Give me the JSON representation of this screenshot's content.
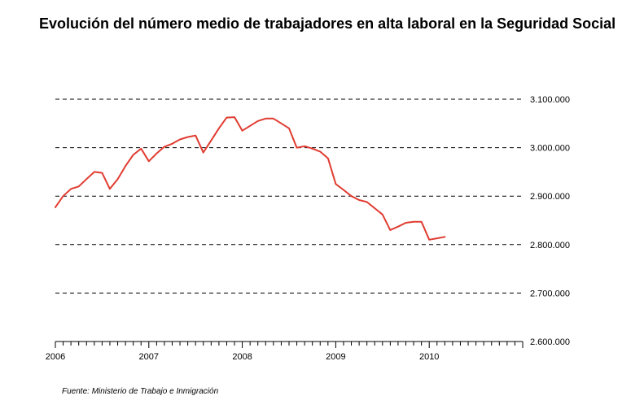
{
  "title": "Evolución del número medio de trabajadores en alta laboral en la Seguridad Social",
  "source": "Fuente: Ministerio de Trabajo e Inmigración",
  "chart_data": {
    "type": "line",
    "title": "Evolución del número medio de trabajadores en alta laboral en la Seguridad Social",
    "xlabel": "",
    "ylabel": "",
    "x_ticks": [
      "2006",
      "2007",
      "2008",
      "2009",
      "2010"
    ],
    "y_ticks": [
      "2.600.000",
      "2.700.000",
      "2.800.000",
      "2.900.000",
      "3.000.000",
      "3.100.000"
    ],
    "ylim": [
      2600000,
      3100000
    ],
    "xlim": [
      2006.0,
      2011.0
    ],
    "grid": "horizontal dashed",
    "line_color": "#e03c31",
    "series": [
      {
        "x": [
          2006.0,
          2006.083,
          2006.167,
          2006.25,
          2006.333,
          2006.417,
          2006.5,
          2006.583,
          2006.667,
          2006.75,
          2006.833,
          2006.917,
          2007.0,
          2007.083,
          2007.167,
          2007.25,
          2007.333,
          2007.417,
          2007.5,
          2007.583,
          2007.667,
          2007.75,
          2007.833,
          2007.917,
          2008.0,
          2008.083,
          2008.167,
          2008.25,
          2008.333,
          2008.417,
          2008.5,
          2008.583,
          2008.667,
          2008.75,
          2008.833,
          2008.917,
          2009.0,
          2009.083,
          2009.167,
          2009.25,
          2009.333,
          2009.417,
          2009.5,
          2009.583,
          2009.667,
          2009.75,
          2009.833,
          2009.917,
          2010.0,
          2010.083,
          2010.167
        ],
        "values": [
          2877000,
          2900000,
          2915000,
          2920000,
          2935000,
          2950000,
          2948000,
          2915000,
          2935000,
          2962000,
          2985000,
          2998000,
          2972000,
          2988000,
          3002000,
          3008000,
          3017000,
          3022000,
          3025000,
          2990000,
          3015000,
          3040000,
          3062000,
          3063000,
          3035000,
          3045000,
          3055000,
          3060000,
          3060000,
          3050000,
          3040000,
          3000000,
          3003000,
          2998000,
          2992000,
          2978000,
          2925000,
          2913000,
          2900000,
          2892000,
          2888000,
          2875000,
          2862000,
          2830000,
          2837000,
          2845000,
          2847000,
          2847000,
          2810000,
          2813000,
          2816000
        ]
      }
    ]
  }
}
